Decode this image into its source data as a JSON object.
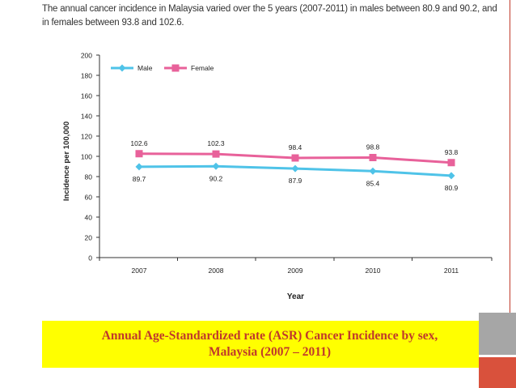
{
  "intro_text": {
    "line1": "The annual cancer incidence in Malaysia varied over the 5 years (2007-2011) in males between 80.9 and 90.2, and",
    "line2": "in females between 93.8 and 102.6."
  },
  "caption": {
    "line1": "Annual Age-Standardized rate (ASR) Cancer Incidence by sex,",
    "line2": "Malaysia (2007 – 2011)"
  },
  "chart_data": {
    "type": "line",
    "x": [
      "2007",
      "2008",
      "2009",
      "2010",
      "2011"
    ],
    "series": [
      {
        "name": "Male",
        "color": "#4fc3e8",
        "marker": "diamond",
        "values": [
          89.7,
          90.2,
          87.9,
          85.4,
          80.9
        ]
      },
      {
        "name": "Female",
        "color": "#e8619a",
        "marker": "square",
        "values": [
          102.6,
          102.3,
          98.4,
          98.8,
          93.8
        ]
      }
    ],
    "xlabel": "Year",
    "ylabel": "Incidence per 100,000",
    "ylim": [
      0,
      200
    ],
    "yticks": [
      0,
      20,
      40,
      60,
      80,
      100,
      120,
      140,
      160,
      180,
      200
    ],
    "grid": false,
    "legend": "top-left"
  },
  "colors": {
    "caption_background": "#ffff00",
    "caption_text": "#c0392b",
    "accent_gray": "#a6a6a6",
    "accent_red": "#d9513c"
  }
}
